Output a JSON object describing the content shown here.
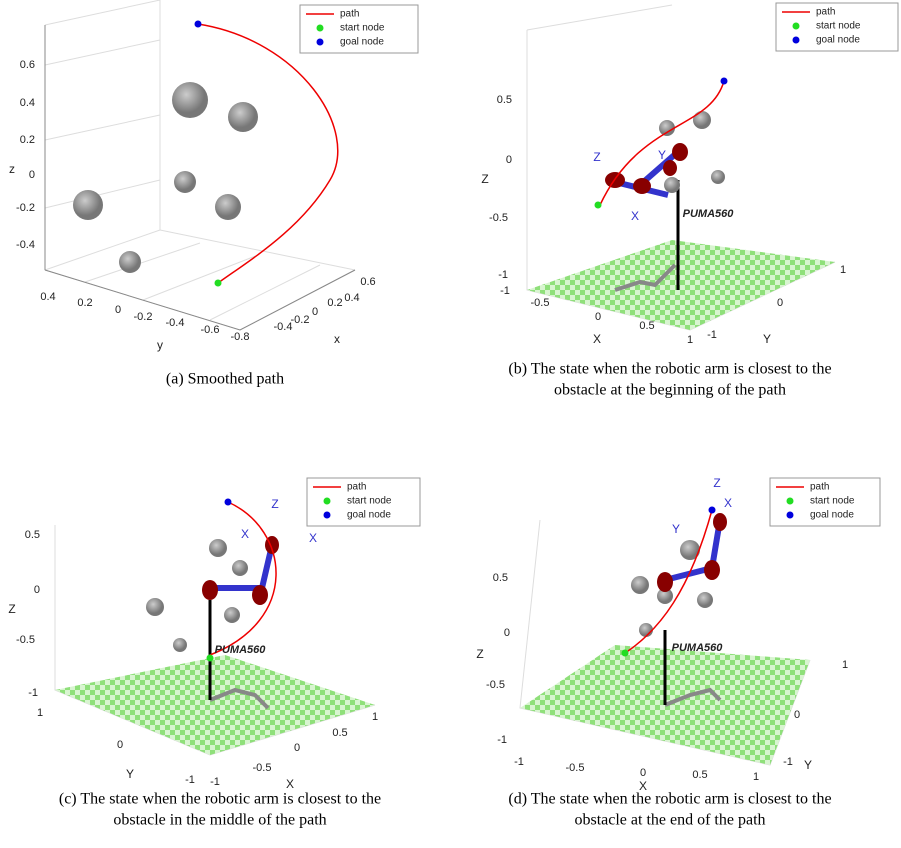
{
  "panels": [
    {
      "caption": [
        "(a) Smoothed path"
      ],
      "legend": [
        "path",
        "start node",
        "goal node"
      ],
      "axis_labels": [
        "x",
        "y",
        "z"
      ],
      "z_ticks": [
        "0.6",
        "0.4",
        "0.2",
        "0",
        "-0.2",
        "-0.4"
      ],
      "x_ticks": [
        "0.6",
        "0.4",
        "0.2",
        "0",
        "-0.2",
        "-0.4"
      ],
      "y_ticks": [
        "0.4",
        "0.2",
        "0",
        "-0.2",
        "-0.4",
        "-0.6",
        "-0.8"
      ]
    },
    {
      "caption": [
        "(b) The state when the robotic arm is closest to the",
        "obstacle at the beginning of the path"
      ],
      "legend": [
        "path",
        "start node",
        "goal node"
      ],
      "axis_labels": [
        "X",
        "Y",
        "Z"
      ],
      "z_ticks": [
        "0.5",
        "0",
        "-0.5",
        "-1"
      ],
      "x_ticks": [
        "-1",
        "-0.5",
        "0",
        "0.5",
        "1"
      ],
      "y_ticks": [
        "1",
        "0",
        "-1"
      ],
      "robot_label": "PUMA560",
      "frame_labels": [
        "Z",
        "Y",
        "X"
      ]
    },
    {
      "caption": [
        "(c) The state when the robotic arm is closest to the",
        "obstacle in the middle of the path"
      ],
      "legend": [
        "path",
        "start node",
        "goal node"
      ],
      "axis_labels": [
        "X",
        "Y",
        "Z"
      ],
      "z_ticks": [
        "0.5",
        "0",
        "-0.5",
        "-1"
      ],
      "x_ticks": [
        "-1",
        "-0.5",
        "0",
        "0.5",
        "1"
      ],
      "y_ticks": [
        "1",
        "0",
        "-1"
      ],
      "robot_label": "PUMA560",
      "frame_labels": [
        "Z",
        "X",
        "X"
      ]
    },
    {
      "caption": [
        "(d) The state when the robotic arm is closest to the",
        "obstacle at the end of the path"
      ],
      "legend": [
        "path",
        "start node",
        "goal node"
      ],
      "axis_labels": [
        "X",
        "Y",
        "Z"
      ],
      "z_ticks": [
        "0.5",
        "0",
        "-0.5",
        "-1"
      ],
      "x_ticks": [
        "-1",
        "-0.5",
        "0",
        "0.5",
        "1"
      ],
      "y_ticks": [
        "1",
        "0",
        "-1"
      ],
      "robot_label": "PUMA560",
      "frame_labels": [
        "Z",
        "X",
        "Y"
      ]
    }
  ]
}
